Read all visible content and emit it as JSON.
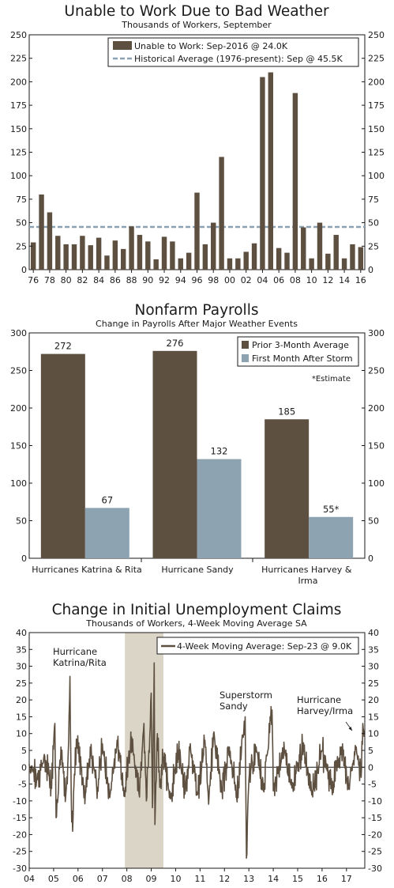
{
  "chart_data": [
    {
      "type": "bar",
      "title": "Unable to Work Due to Bad Weather",
      "subtitle": "Thousands of Workers, September",
      "ylim": [
        0,
        250
      ],
      "yticks": [
        0,
        25,
        50,
        75,
        100,
        125,
        150,
        175,
        200,
        225,
        250
      ],
      "x_tick_labels": [
        "76",
        "78",
        "80",
        "82",
        "84",
        "86",
        "88",
        "90",
        "92",
        "94",
        "96",
        "98",
        "00",
        "02",
        "04",
        "06",
        "08",
        "10",
        "12",
        "14",
        "16"
      ],
      "categories": [
        "1976",
        "1977",
        "1978",
        "1979",
        "1980",
        "1981",
        "1982",
        "1983",
        "1984",
        "1985",
        "1986",
        "1987",
        "1988",
        "1989",
        "1990",
        "1991",
        "1992",
        "1993",
        "1994",
        "1995",
        "1996",
        "1997",
        "1998",
        "1999",
        "2000",
        "2001",
        "2002",
        "2003",
        "2004",
        "2005",
        "2006",
        "2007",
        "2008",
        "2009",
        "2010",
        "2011",
        "2012",
        "2013",
        "2014",
        "2015",
        "2016"
      ],
      "series": [
        {
          "name": "Unable to Work: Sep-2016 @ 24.0K",
          "type": "bar",
          "values": [
            29,
            80,
            61,
            36,
            27,
            27,
            36,
            26,
            34,
            15,
            31,
            22,
            46,
            37,
            30,
            11,
            35,
            30,
            12,
            18,
            82,
            27,
            50,
            120,
            12,
            12,
            19,
            28,
            205,
            210,
            23,
            18,
            188,
            45,
            12,
            50,
            17,
            37,
            12,
            27,
            24
          ]
        },
        {
          "name": "Historical Average (1976-present): Sep @ 45.5K",
          "type": "reference_line",
          "value": 45.5
        }
      ],
      "legend_position": "top-right",
      "colors": {
        "bar": "#5e5041",
        "average": "#8aa2b3"
      }
    },
    {
      "type": "bar",
      "title": "Nonfarm Payrolls",
      "subtitle": "Change in Payrolls After Major Weather Events",
      "categories": [
        "Hurricanes Katrina & Rita",
        "Hurricane Sandy",
        "Hurricanes Harvey & Irma"
      ],
      "series": [
        {
          "name": "Prior 3-Month Average",
          "values": [
            272,
            276,
            185
          ],
          "labels": [
            "272",
            "276",
            "185"
          ]
        },
        {
          "name": "First Month After Storm",
          "values": [
            67,
            132,
            55
          ],
          "labels": [
            "67",
            "132",
            "55*"
          ]
        }
      ],
      "ylim": [
        0,
        300
      ],
      "yticks": [
        0,
        50,
        100,
        150,
        200,
        250,
        300
      ],
      "note": "*Estimate",
      "legend_position": "top-right",
      "colors": {
        "prior": "#5e5041",
        "after": "#8ea3b2"
      }
    },
    {
      "type": "line",
      "title": "Change in Initial Unemployment Claims",
      "subtitle": "Thousands of Workers, 4-Week Moving Average SA",
      "ylim": [
        -30,
        40
      ],
      "yticks": [
        -30,
        -25,
        -20,
        -15,
        -10,
        -5,
        0,
        5,
        10,
        15,
        20,
        25,
        30,
        35,
        40
      ],
      "xlim": [
        2004,
        2017.75
      ],
      "x_tick_labels": [
        "04",
        "05",
        "06",
        "07",
        "08",
        "09",
        "10",
        "11",
        "12",
        "13",
        "14",
        "15",
        "16",
        "17"
      ],
      "series": [
        {
          "name": "4-Week Moving Average: Sep-23 @ 9.0K",
          "key_points": [
            [
              2004.0,
              1
            ],
            [
              2004.3,
              -4
            ],
            [
              2004.6,
              3
            ],
            [
              2004.9,
              -5
            ],
            [
              2005.05,
              13
            ],
            [
              2005.1,
              -15
            ],
            [
              2005.3,
              6
            ],
            [
              2005.5,
              -8
            ],
            [
              2005.6,
              5
            ],
            [
              2005.67,
              27
            ],
            [
              2005.72,
              -8
            ],
            [
              2005.78,
              -19
            ],
            [
              2005.85,
              -2
            ],
            [
              2005.95,
              7
            ],
            [
              2006.3,
              -8
            ],
            [
              2006.5,
              6
            ],
            [
              2006.8,
              -6
            ],
            [
              2007.0,
              7
            ],
            [
              2007.3,
              -9
            ],
            [
              2007.6,
              8
            ],
            [
              2007.9,
              -7
            ],
            [
              2008.2,
              9
            ],
            [
              2008.5,
              -8
            ],
            [
              2008.7,
              13
            ],
            [
              2008.8,
              -10
            ],
            [
              2008.9,
              5
            ],
            [
              2009.0,
              22
            ],
            [
              2009.05,
              -12
            ],
            [
              2009.1,
              15
            ],
            [
              2009.12,
              31
            ],
            [
              2009.15,
              -17
            ],
            [
              2009.25,
              10
            ],
            [
              2009.35,
              -6
            ],
            [
              2009.5,
              3
            ],
            [
              2009.8,
              -9
            ],
            [
              2010.1,
              5
            ],
            [
              2010.4,
              -7
            ],
            [
              2010.6,
              7
            ],
            [
              2010.9,
              -8
            ],
            [
              2011.2,
              8
            ],
            [
              2011.35,
              -11
            ],
            [
              2011.55,
              10
            ],
            [
              2011.9,
              -6
            ],
            [
              2012.2,
              6
            ],
            [
              2012.5,
              -9
            ],
            [
              2012.85,
              15
            ],
            [
              2012.9,
              -27
            ],
            [
              2013.0,
              -4
            ],
            [
              2013.3,
              6
            ],
            [
              2013.6,
              -7
            ],
            [
              2013.95,
              17
            ],
            [
              2014.0,
              -7
            ],
            [
              2014.4,
              5
            ],
            [
              2014.8,
              -6
            ],
            [
              2015.2,
              6
            ],
            [
              2015.6,
              -7
            ],
            [
              2016.0,
              5
            ],
            [
              2016.4,
              -6
            ],
            [
              2016.8,
              6
            ],
            [
              2017.1,
              -5
            ],
            [
              2017.4,
              6
            ],
            [
              2017.6,
              -3
            ],
            [
              2017.67,
              13
            ],
            [
              2017.72,
              9
            ]
          ]
        }
      ],
      "shaded_region": [
        2007.92,
        2009.5
      ],
      "annotations": [
        {
          "text": [
            "Hurricane",
            "Katrina/Rita"
          ]
        },
        {
          "text": [
            "Superstorm",
            "Sandy"
          ]
        },
        {
          "text": [
            "Hurricane",
            "Harvey/Irma"
          ]
        }
      ],
      "legend_position": "top-right",
      "colors": {
        "line": "#5e5041",
        "shade": "#dad5c7"
      }
    }
  ]
}
